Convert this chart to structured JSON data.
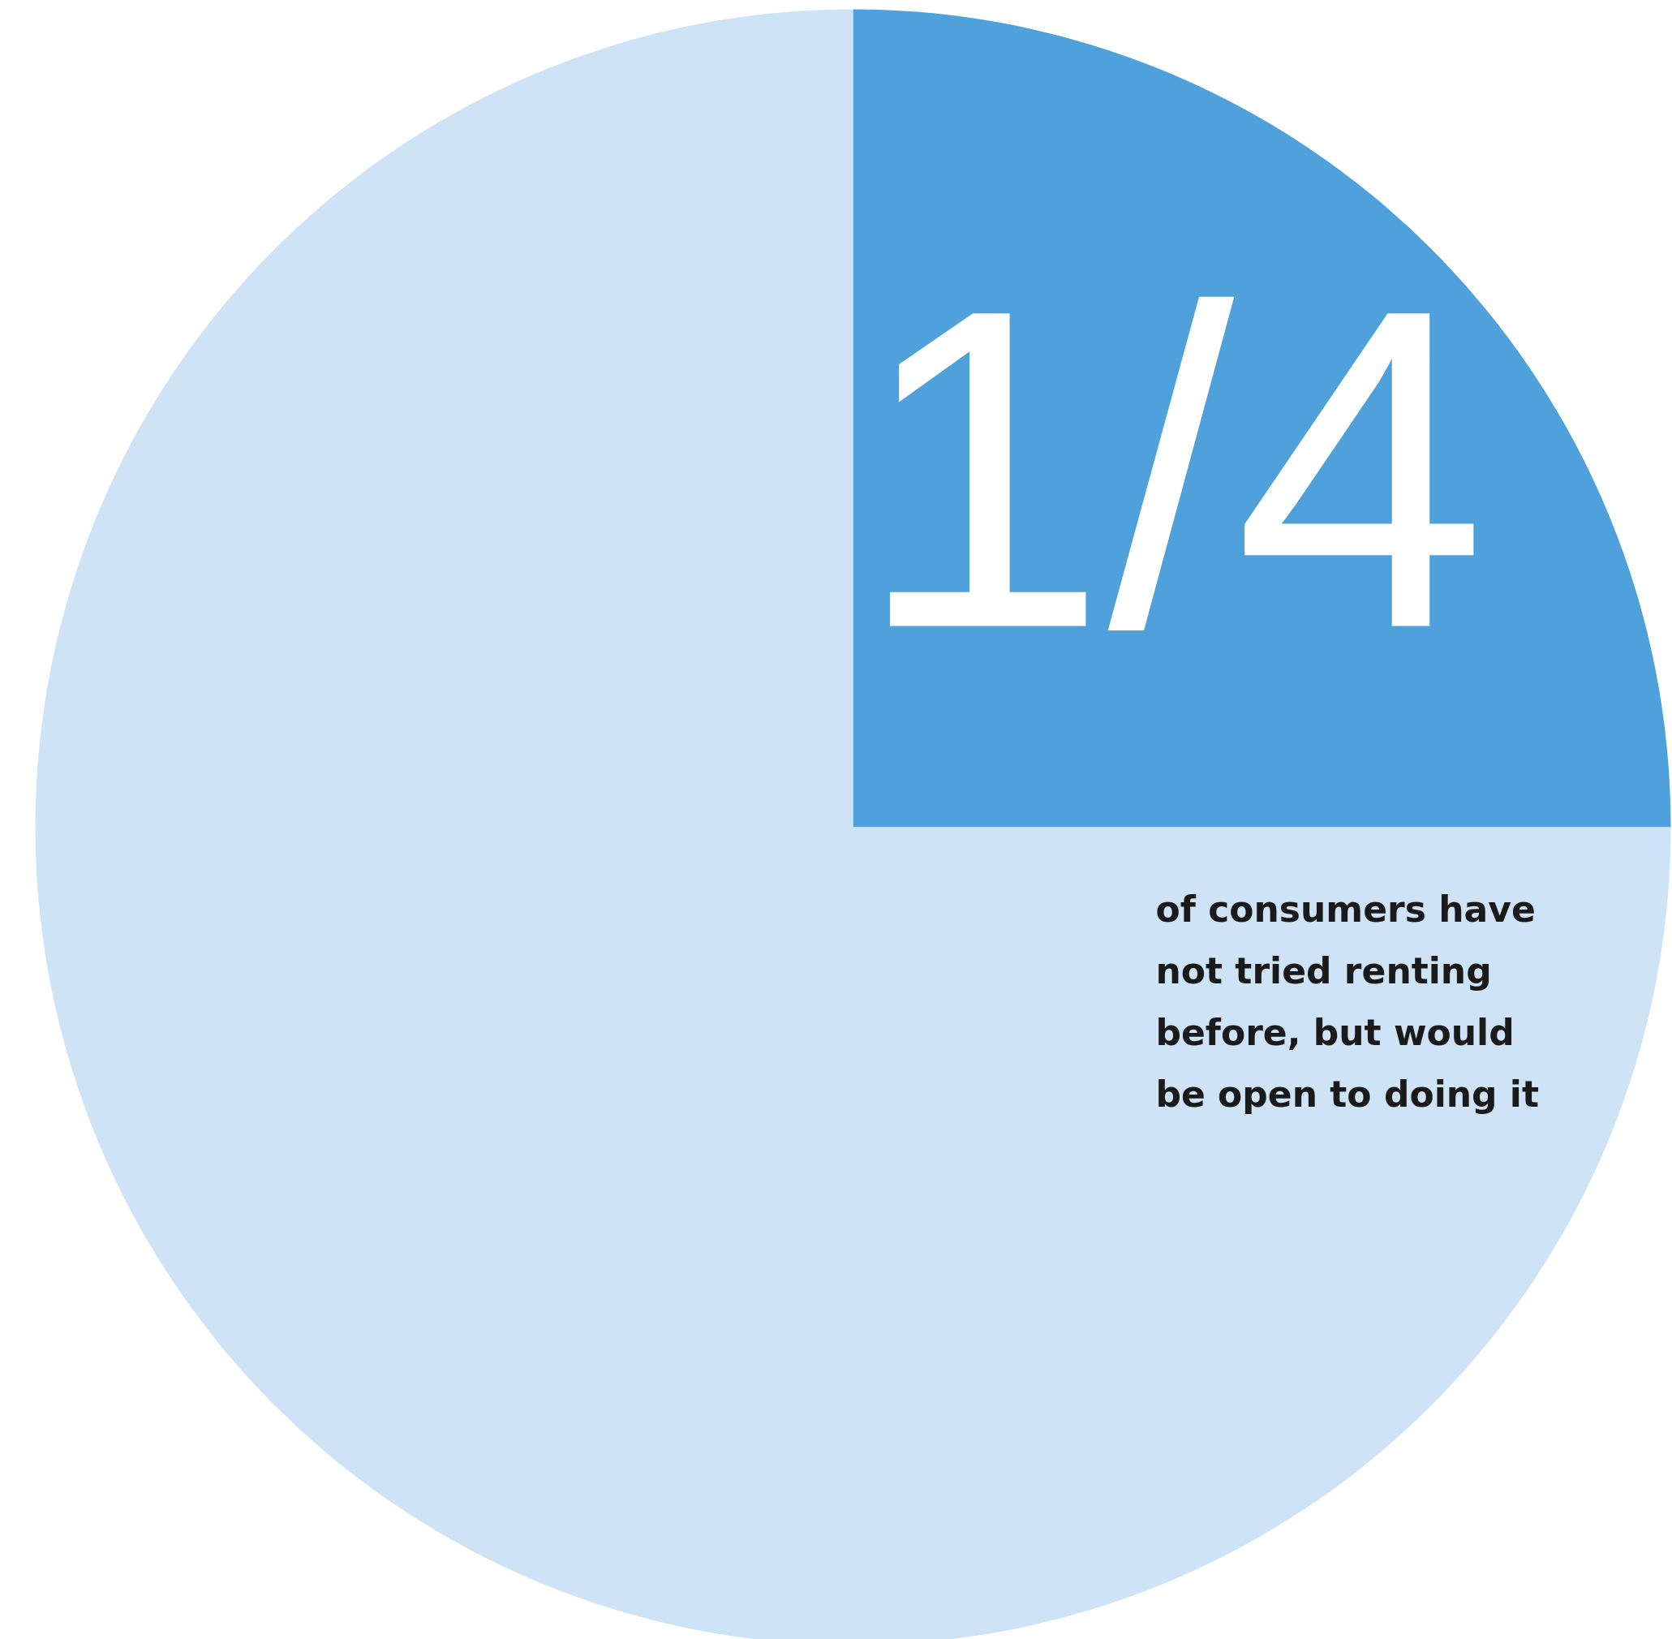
{
  "chart_data": {
    "type": "pie",
    "categories": [
      null,
      null
    ],
    "values": [
      25,
      75
    ],
    "colors": [
      "#4fa1db",
      "#cee3f5"
    ],
    "annotations": [
      "1/4",
      "of consumers have not tried renting before, but would be open to doing it"
    ]
  }
}
